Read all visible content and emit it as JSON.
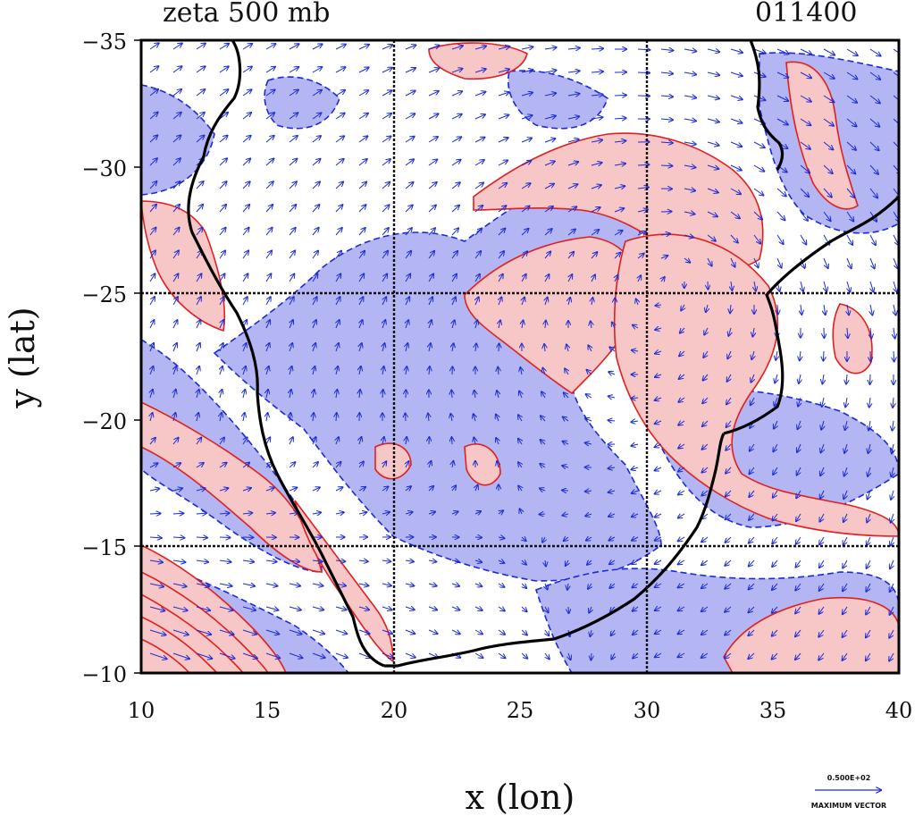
{
  "header": {
    "title": "zeta 500 mb",
    "time_code": "011400"
  },
  "axes": {
    "xlabel": "x (lon)",
    "ylabel": "y (lat)",
    "x_ticks": [
      "10",
      "15",
      "20",
      "25",
      "30",
      "35",
      "40"
    ],
    "y_ticks": [
      "−35",
      "−30",
      "−25",
      "−20",
      "−15",
      "−10"
    ],
    "xlim": [
      10,
      40
    ],
    "ylim": [
      -10,
      -35
    ]
  },
  "grid_lines": {
    "lon": [
      20,
      30
    ],
    "lat": [
      -25,
      -15
    ]
  },
  "legend": {
    "value_label": "0.500E+02",
    "caption": "MAXIMUM VECTOR"
  },
  "colors": {
    "positive_fill": "#f7c6c6",
    "positive_contour": "#e02020",
    "negative_fill": "#b3b6f2",
    "negative_contour": "#1a2ad6",
    "vector": "#1a2ad6",
    "coastline": "#000000"
  }
}
